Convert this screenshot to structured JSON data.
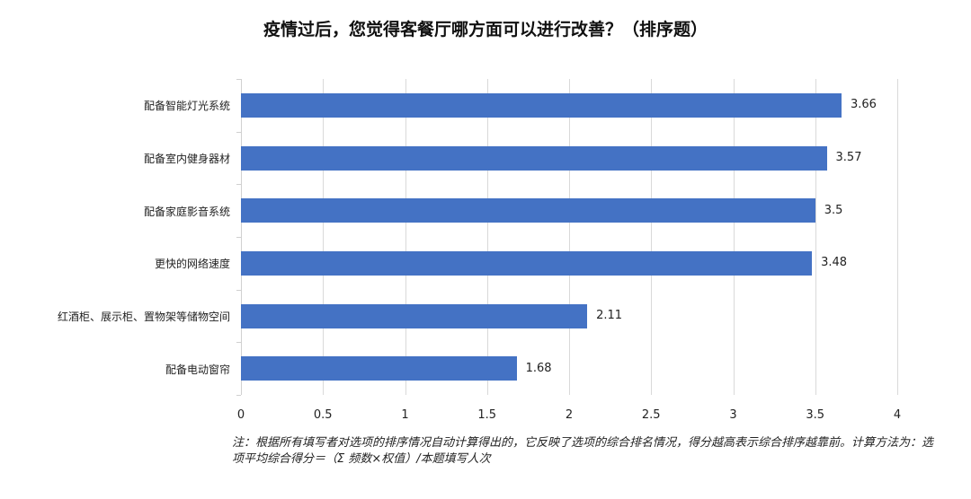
{
  "chart_data": {
    "type": "bar",
    "orientation": "horizontal",
    "title": "疫情过后，您觉得客餐厅哪方面可以进行改善？（排序题）",
    "categories": [
      "配备智能灯光系统",
      "配备室内健身器材",
      "配备家庭影音系统",
      "更快的网络速度",
      "红酒柜、展示柜、置物架等储物空间",
      "配备电动窗帘"
    ],
    "values": [
      3.66,
      3.57,
      3.5,
      3.48,
      2.11,
      1.68
    ],
    "value_labels": [
      "3.66",
      "3.57",
      "3.5",
      "3.48",
      "2.11",
      "1.68"
    ],
    "xlabel": "",
    "ylabel": "",
    "xlim": [
      0,
      4
    ],
    "x_ticks": [
      "0",
      "0.5",
      "1",
      "1.5",
      "2",
      "2.5",
      "3",
      "3.5",
      "4"
    ],
    "grid": true,
    "legend": "none",
    "bar_color": "#4472c4",
    "note": "注：根据所有填写者对选项的排序情况自动计算得出的，它反映了选项的综合排名情况，得分越高表示综合排序越靠前。计算方法为：选项平均综合得分＝（Σ 频数×权值）/本题填写人次"
  }
}
